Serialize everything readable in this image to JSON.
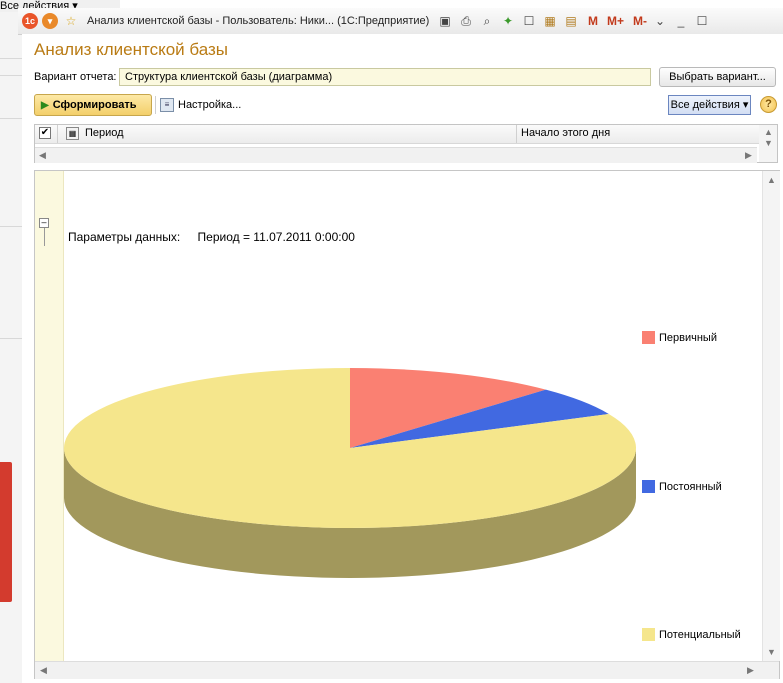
{
  "background_window": {
    "all_actions_label": "Все действия ▾"
  },
  "titlebar": {
    "title": "Анализ клиентской базы - Пользователь: Ники... (1С:Предприятие)",
    "m_label": "M",
    "mplus_label": "M+",
    "mminus_label": "M-"
  },
  "page": {
    "title": "Анализ клиентской базы"
  },
  "variant": {
    "label": "Вариант отчета:",
    "value": "Структура клиентской базы (диаграмма)",
    "choose_button": "Выбрать вариант..."
  },
  "toolbar": {
    "generate_label": "Сформировать",
    "settings_label": "Настройка...",
    "all_actions_label": "Все действия ▾",
    "help_label": "?"
  },
  "settings_table": {
    "columns": [
      "Период",
      "Начало этого дня"
    ]
  },
  "report": {
    "params_label": "Параметры данных:",
    "params_value": "Период = 11.07.2011 0:00:00"
  },
  "chart_data": {
    "type": "pie",
    "style": "3d",
    "legend_position": "right",
    "categories": [
      "Первичный",
      "Постоянный",
      "Потенциальный"
    ],
    "values": [
      12,
      6,
      82
    ],
    "colors": [
      "#fa8072",
      "#4169e1",
      "#f5e68c"
    ]
  }
}
